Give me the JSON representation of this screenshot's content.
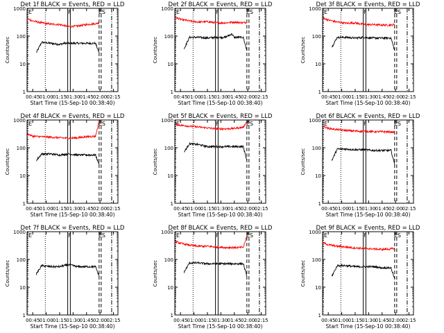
{
  "figure": {
    "background": "#ffffff",
    "axis_color": "#000000",
    "events_color": "#000000",
    "lld_color": "#ff0000"
  },
  "chart_data": [
    {
      "type": "line",
      "title": "Det 1f BLACK = Events, RED = LLD",
      "xlabel": "Start Time (15-Sep-10 00:38:40)",
      "ylabel": "Counts/sec",
      "y_scale": "log",
      "ylim": [
        1,
        1000
      ],
      "x_ticks": [
        "00:45",
        "01:00",
        "01:15",
        "01:30",
        "01:45",
        "02:00",
        "02:15"
      ],
      "y_ticks": [
        "1",
        "10",
        "100",
        "1000"
      ],
      "markers": [
        "E",
        "F",
        "ES"
      ],
      "series": [
        {
          "name": "BLACK = Events",
          "color": "#000000",
          "x": [
            "00:49",
            "00:55",
            "01:05",
            "01:15",
            "01:20",
            "01:35",
            "01:45",
            "01:55",
            "01:59"
          ],
          "values": [
            25,
            60,
            55,
            50,
            55,
            55,
            55,
            55,
            25
          ]
        },
        {
          "name": "RED = LLD",
          "color": "#ff0000",
          "x": [
            "00:39",
            "00:45",
            "00:55",
            "01:05",
            "01:15",
            "01:25",
            "01:35",
            "01:45",
            "01:55",
            "01:59"
          ],
          "values": [
            420,
            350,
            300,
            270,
            260,
            220,
            230,
            260,
            280,
            300
          ]
        }
      ]
    },
    {
      "type": "line",
      "title": "Det 2f BLACK = Events, RED = LLD",
      "xlabel": "Start Time (15-Sep-10 00:38:40)",
      "ylabel": "Counts/sec",
      "y_scale": "log",
      "ylim": [
        1,
        1000
      ],
      "x_ticks": [
        "00:45",
        "01:00",
        "01:15",
        "01:30",
        "01:45",
        "02:00",
        "02:15"
      ],
      "y_ticks": [
        "1",
        "10",
        "100",
        "1000"
      ],
      "markers": [
        "E",
        "F",
        "ES"
      ],
      "series": [
        {
          "name": "BLACK = Events",
          "color": "#000000",
          "x": [
            "00:49",
            "00:55",
            "01:05",
            "01:15",
            "01:25",
            "01:35",
            "01:42",
            "01:45",
            "01:55",
            "01:59"
          ],
          "values": [
            35,
            90,
            90,
            85,
            90,
            90,
            120,
            90,
            90,
            30
          ]
        },
        {
          "name": "RED = LLD",
          "color": "#ff0000",
          "x": [
            "00:39",
            "00:45",
            "00:55",
            "01:05",
            "01:15",
            "01:25",
            "01:35",
            "01:45",
            "01:55",
            "01:59"
          ],
          "values": [
            480,
            400,
            350,
            320,
            330,
            300,
            300,
            320,
            300,
            320
          ]
        }
      ]
    },
    {
      "type": "line",
      "title": "Det 3f BLACK = Events, RED = LLD",
      "xlabel": "Start Time (15-Sep-10 00:38:40)",
      "ylabel": "Counts/sec",
      "y_scale": "log",
      "ylim": [
        1,
        1000
      ],
      "x_ticks": [
        "00:45",
        "01:00",
        "01:15",
        "01:30",
        "01:45",
        "02:00",
        "02:15"
      ],
      "y_ticks": [
        "1",
        "10",
        "100",
        "1000"
      ],
      "markers": [
        "E",
        "F",
        "ES"
      ],
      "series": [
        {
          "name": "BLACK = Events",
          "color": "#000000",
          "x": [
            "00:49",
            "00:55",
            "01:05",
            "01:15",
            "01:25",
            "01:35",
            "01:45",
            "01:55",
            "01:59"
          ],
          "values": [
            40,
            90,
            90,
            85,
            90,
            85,
            85,
            85,
            30
          ]
        },
        {
          "name": "RED = LLD",
          "color": "#ff0000",
          "x": [
            "00:39",
            "00:45",
            "00:55",
            "01:05",
            "01:15",
            "01:25",
            "01:35",
            "01:45",
            "01:55",
            "01:59"
          ],
          "values": [
            450,
            380,
            320,
            290,
            300,
            260,
            260,
            250,
            250,
            260
          ]
        }
      ]
    },
    {
      "type": "line",
      "title": "Det 4f BLACK = Events, RED = LLD",
      "xlabel": "Start Time (15-Sep-10 00:38:40)",
      "ylabel": "Counts/sec",
      "y_scale": "log",
      "ylim": [
        1,
        1000
      ],
      "x_ticks": [
        "00:45",
        "01:00",
        "01:15",
        "01:30",
        "01:45",
        "02:00",
        "02:15"
      ],
      "y_ticks": [
        "1",
        "10",
        "100",
        "1000"
      ],
      "markers": [
        "E",
        "F",
        "ES"
      ],
      "series": [
        {
          "name": "BLACK = Events",
          "color": "#000000",
          "x": [
            "00:49",
            "00:55",
            "01:05",
            "01:15",
            "01:25",
            "01:35",
            "01:45",
            "01:55",
            "01:59"
          ],
          "values": [
            35,
            60,
            60,
            55,
            60,
            55,
            55,
            55,
            25
          ]
        },
        {
          "name": "RED = LLD",
          "color": "#ff0000",
          "x": [
            "00:39",
            "00:45",
            "00:55",
            "01:05",
            "01:15",
            "01:25",
            "01:35",
            "01:45",
            "01:55",
            "01:59"
          ],
          "values": [
            320,
            260,
            250,
            240,
            230,
            220,
            230,
            250,
            260,
            900
          ]
        }
      ]
    },
    {
      "type": "line",
      "title": "Det 5f BLACK = Events, RED = LLD",
      "xlabel": "Start Time (15-Sep-10 00:38:40)",
      "ylabel": "Counts/sec",
      "y_scale": "log",
      "ylim": [
        1,
        1000
      ],
      "x_ticks": [
        "00:45",
        "01:00",
        "01:15",
        "01:30",
        "01:45",
        "02:00",
        "02:15"
      ],
      "y_ticks": [
        "1",
        "10",
        "100",
        "1000"
      ],
      "markers": [
        "E",
        "F",
        "ES"
      ],
      "series": [
        {
          "name": "BLACK = Events",
          "color": "#000000",
          "x": [
            "00:49",
            "00:55",
            "01:05",
            "01:15",
            "01:25",
            "01:35",
            "01:45",
            "01:55",
            "01:59"
          ],
          "values": [
            70,
            140,
            130,
            110,
            110,
            110,
            110,
            110,
            35
          ]
        },
        {
          "name": "RED = LLD",
          "color": "#ff0000",
          "x": [
            "00:39",
            "00:45",
            "00:55",
            "01:05",
            "01:15",
            "01:25",
            "01:35",
            "01:45",
            "01:55",
            "01:59"
          ],
          "values": [
            720,
            650,
            600,
            560,
            520,
            480,
            480,
            500,
            550,
            900
          ]
        }
      ]
    },
    {
      "type": "line",
      "title": "Det 6f BLACK = Events, RED = LLD",
      "xlabel": "Start Time (15-Sep-10 00:38:40)",
      "ylabel": "Counts/sec",
      "y_scale": "log",
      "ylim": [
        1,
        1000
      ],
      "x_ticks": [
        "00:45",
        "01:00",
        "01:15",
        "01:30",
        "01:45",
        "02:00",
        "02:15"
      ],
      "y_ticks": [
        "1",
        "10",
        "100",
        "1000"
      ],
      "markers": [
        "E",
        "F",
        "ES"
      ],
      "series": [
        {
          "name": "BLACK = Events",
          "color": "#000000",
          "x": [
            "00:49",
            "00:55",
            "01:05",
            "01:15",
            "01:25",
            "01:35",
            "01:45",
            "01:55",
            "01:59"
          ],
          "values": [
            35,
            90,
            90,
            85,
            85,
            80,
            80,
            80,
            25
          ]
        },
        {
          "name": "RED = LLD",
          "color": "#ff0000",
          "x": [
            "00:39",
            "00:45",
            "00:55",
            "01:05",
            "01:15",
            "01:25",
            "01:35",
            "01:45",
            "01:55",
            "01:59"
          ],
          "values": [
            600,
            500,
            450,
            420,
            400,
            390,
            380,
            380,
            370,
            370
          ]
        }
      ]
    },
    {
      "type": "line",
      "title": "Det 7f BLACK = Events, RED = LLD",
      "xlabel": "Start Time (15-Sep-10 00:38:40)",
      "ylabel": "Counts/sec",
      "y_scale": "log",
      "ylim": [
        1,
        1000
      ],
      "x_ticks": [
        "00:45",
        "01:00",
        "01:15",
        "01:30",
        "01:45",
        "02:00",
        "02:15"
      ],
      "y_ticks": [
        "1",
        "10",
        "100",
        "1000"
      ],
      "markers": [
        "E",
        "F",
        "ES"
      ],
      "series": [
        {
          "name": "BLACK = Events",
          "color": "#000000",
          "x": [
            "00:49",
            "00:55",
            "01:05",
            "01:15",
            "01:25",
            "01:35",
            "01:45",
            "01:55",
            "01:59"
          ],
          "values": [
            30,
            60,
            55,
            55,
            65,
            55,
            55,
            55,
            25
          ]
        }
      ]
    },
    {
      "type": "line",
      "title": "Det 8f BLACK = Events, RED = LLD",
      "xlabel": "Start Time (15-Sep-10 00:38:40)",
      "ylabel": "Counts/sec",
      "y_scale": "log",
      "ylim": [
        1,
        1000
      ],
      "x_ticks": [
        "00:45",
        "01:00",
        "01:15",
        "01:30",
        "01:45",
        "02:00",
        "02:15"
      ],
      "y_ticks": [
        "1",
        "10",
        "100",
        "1000"
      ],
      "markers": [
        "E",
        "F",
        "ES"
      ],
      "series": [
        {
          "name": "BLACK = Events",
          "color": "#000000",
          "x": [
            "00:49",
            "00:55",
            "01:05",
            "01:15",
            "01:25",
            "01:35",
            "01:45",
            "01:55",
            "01:59"
          ],
          "values": [
            35,
            75,
            75,
            70,
            70,
            70,
            70,
            70,
            25
          ]
        },
        {
          "name": "RED = LLD",
          "color": "#ff0000",
          "x": [
            "00:39",
            "00:45",
            "00:55",
            "01:05",
            "01:15",
            "01:25",
            "01:35",
            "01:45",
            "01:55",
            "01:59"
          ],
          "values": [
            450,
            380,
            330,
            300,
            300,
            280,
            270,
            270,
            270,
            700
          ]
        }
      ]
    },
    {
      "type": "line",
      "title": "Det 9f BLACK = Events, RED = LLD",
      "xlabel": "Start Time (15-Sep-10 00:38:40)",
      "ylabel": "Counts/sec",
      "y_scale": "log",
      "ylim": [
        1,
        1000
      ],
      "x_ticks": [
        "00:45",
        "01:00",
        "01:15",
        "01:30",
        "01:45",
        "02:00",
        "02:15"
      ],
      "y_ticks": [
        "1",
        "10",
        "100",
        "1000"
      ],
      "markers": [
        "E",
        "F",
        "ES"
      ],
      "series": [
        {
          "name": "BLACK = Events",
          "color": "#000000",
          "x": [
            "00:49",
            "00:55",
            "01:05",
            "01:15",
            "01:25",
            "01:35",
            "01:45",
            "01:55",
            "01:59"
          ],
          "values": [
            25,
            60,
            60,
            55,
            55,
            55,
            50,
            50,
            20
          ]
        },
        {
          "name": "RED = LLD",
          "color": "#ff0000",
          "x": [
            "00:39",
            "00:45",
            "00:55",
            "01:05",
            "01:15",
            "01:25",
            "01:35",
            "01:45",
            "01:55",
            "01:59"
          ],
          "values": [
            400,
            340,
            300,
            280,
            260,
            250,
            240,
            230,
            240,
            250
          ]
        }
      ]
    }
  ]
}
